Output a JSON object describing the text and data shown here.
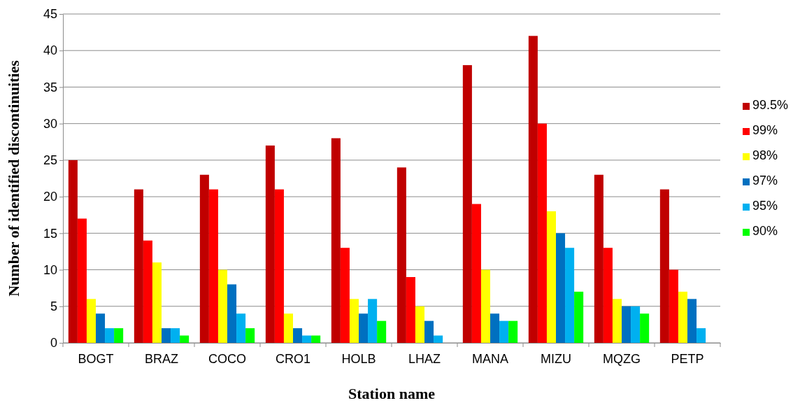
{
  "chart_data": {
    "type": "bar",
    "xlabel": "Station name",
    "ylabel": "Number of identified discontinuities",
    "categories": [
      "BOGT",
      "BRAZ",
      "COCO",
      "CRO1",
      "HOLB",
      "LHAZ",
      "MANA",
      "MIZU",
      "MQZG",
      "PETP"
    ],
    "series": [
      {
        "name": "99.5%",
        "color": "#c00000",
        "values": [
          25,
          21,
          23,
          27,
          28,
          24,
          38,
          42,
          23,
          21
        ]
      },
      {
        "name": "99%",
        "color": "#ff0000",
        "values": [
          17,
          14,
          21,
          21,
          13,
          9,
          19,
          30,
          13,
          10
        ]
      },
      {
        "name": "98%",
        "color": "#ffff00",
        "values": [
          6,
          11,
          10,
          4,
          6,
          5,
          10,
          18,
          6,
          7
        ]
      },
      {
        "name": "97%",
        "color": "#0070c0",
        "values": [
          4,
          2,
          8,
          2,
          4,
          3,
          4,
          15,
          5,
          6
        ]
      },
      {
        "name": "95%",
        "color": "#00b0f0",
        "values": [
          2,
          2,
          4,
          1,
          6,
          1,
          3,
          13,
          5,
          2
        ]
      },
      {
        "name": "90%",
        "color": "#00ff00",
        "values": [
          2,
          1,
          2,
          1,
          3,
          0,
          3,
          7,
          4,
          0
        ]
      }
    ],
    "ylim": [
      0,
      45
    ],
    "yticks": [
      0,
      5,
      10,
      15,
      20,
      25,
      30,
      35,
      40,
      45
    ],
    "grid": "y",
    "legend": "right"
  }
}
